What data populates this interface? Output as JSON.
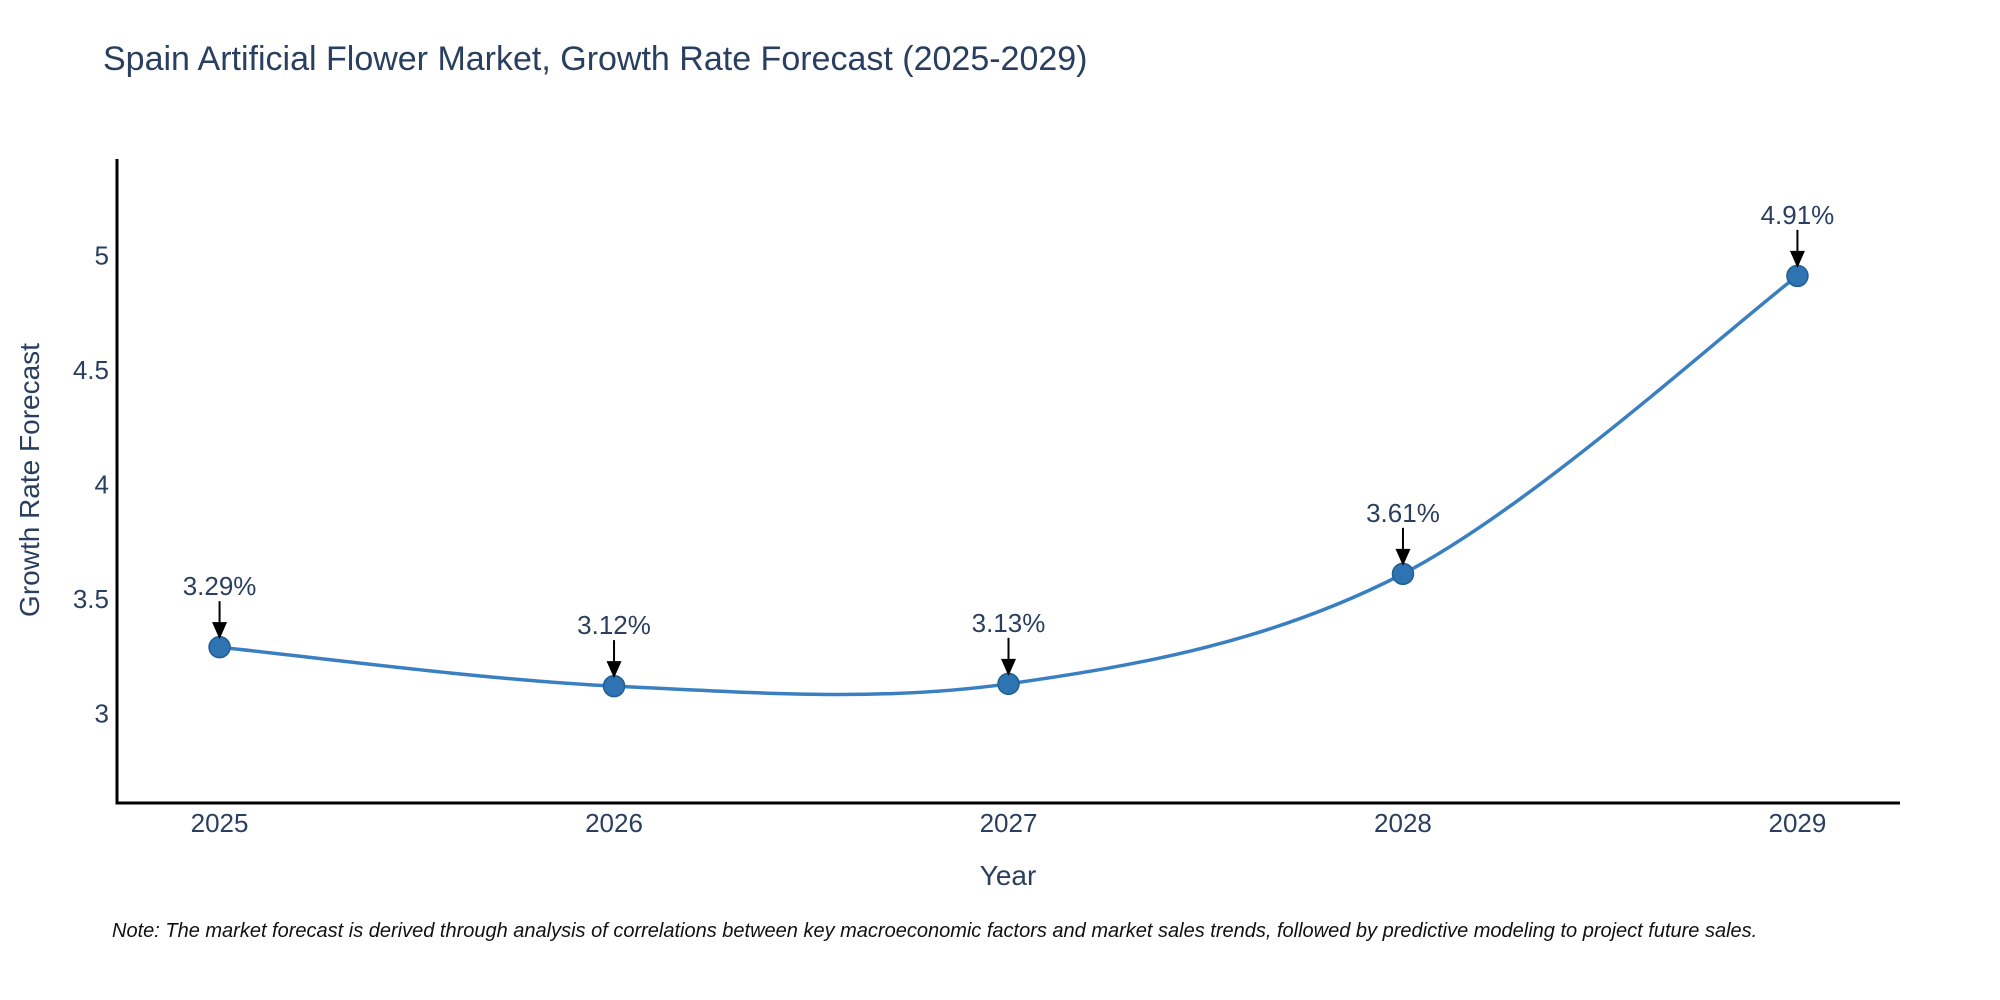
{
  "title": "Spain Artificial Flower Market, Growth Rate Forecast (2025-2029)",
  "note": {
    "text": "Note: The market forecast is derived through analysis of correlations between key macroeconomic factors and market sales trends, followed by predictive modeling to project future sales."
  },
  "chart_data": {
    "type": "line",
    "title": "Spain Artificial Flower Market, Growth Rate Forecast (2025-2029)",
    "xlabel": "Year",
    "ylabel": "Growth Rate Forecast",
    "x": [
      2025,
      2026,
      2027,
      2028,
      2029
    ],
    "series": [
      {
        "name": "Growth Rate Forecast",
        "values": [
          3.29,
          3.12,
          3.13,
          3.61,
          4.91
        ]
      }
    ],
    "annotations": [
      {
        "x": 2025,
        "y": 3.29,
        "text": "3.29%"
      },
      {
        "x": 2026,
        "y": 3.12,
        "text": "3.12%"
      },
      {
        "x": 2027,
        "y": 3.13,
        "text": "3.13%"
      },
      {
        "x": 2028,
        "y": 3.61,
        "text": "3.61%"
      },
      {
        "x": 2029,
        "y": 4.91,
        "text": "4.91%"
      }
    ],
    "x_tick_labels": [
      "2025",
      "2026",
      "2027",
      "2028",
      "2029"
    ],
    "y_tick_values": [
      3,
      3.5,
      4,
      4.5,
      5
    ],
    "y_tick_labels": [
      "3",
      "3.5",
      "4",
      "4.5",
      "5"
    ],
    "xlim": [
      2024.74,
      2029.26
    ],
    "ylim": [
      2.61,
      5.42
    ],
    "line_shape": "spline",
    "grid": false,
    "legend": false,
    "colors": {
      "line": "#3a7fc1",
      "marker_fill": "#2e74b2",
      "marker_edge": "#215e93",
      "arrow": "#000000",
      "text": "#2a3f5f",
      "axis": "#000000",
      "note_text": "#111111"
    }
  }
}
